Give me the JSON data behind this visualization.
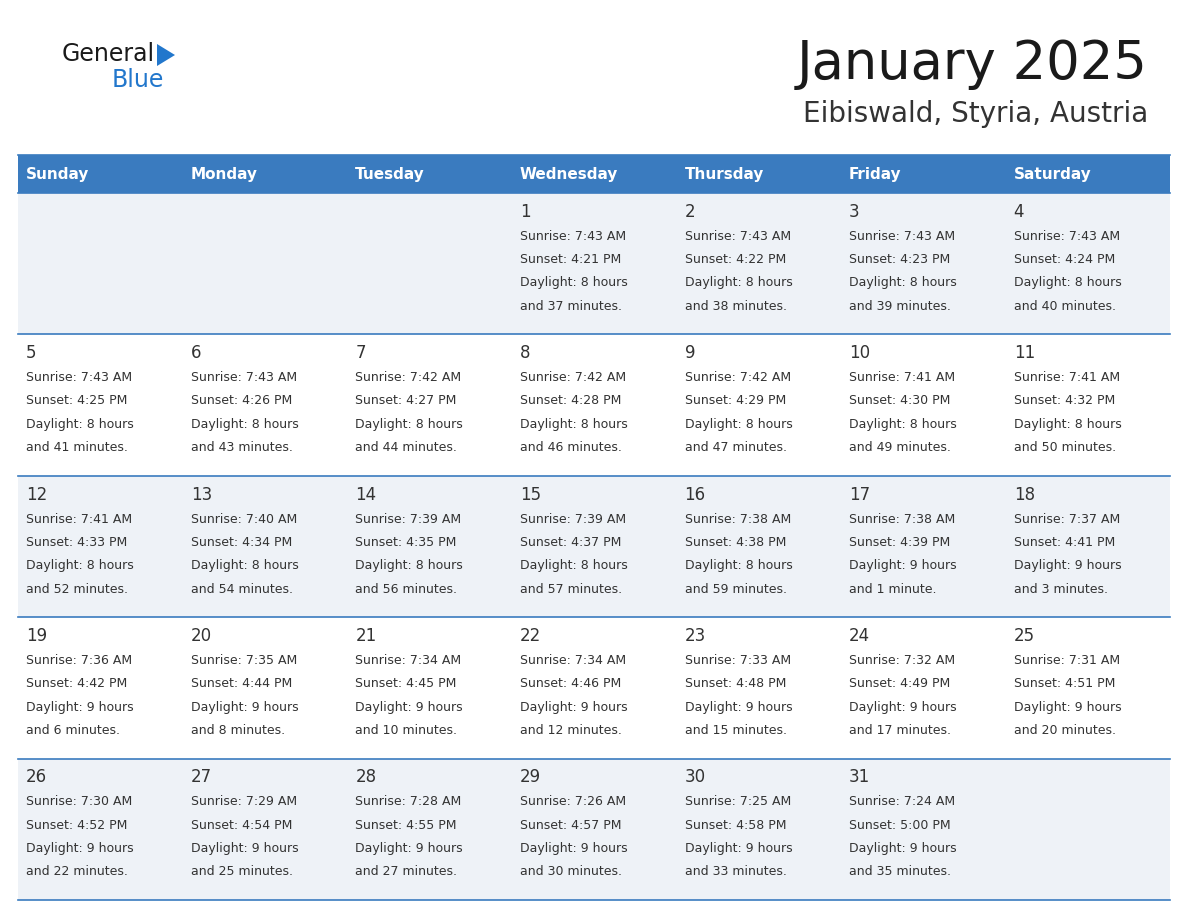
{
  "title": "January 2025",
  "subtitle": "Eibiswald, Styria, Austria",
  "days_of_week": [
    "Sunday",
    "Monday",
    "Tuesday",
    "Wednesday",
    "Thursday",
    "Friday",
    "Saturday"
  ],
  "header_bg": "#3a7bbf",
  "header_text": "#ffffff",
  "row_bg_odd": "#eef2f7",
  "row_bg_even": "#ffffff",
  "border_color": "#3a7bbf",
  "title_color": "#1a1a1a",
  "subtitle_color": "#333333",
  "cell_text_color": "#333333",
  "day_num_color": "#333333",
  "logo_black": "#1a1a1a",
  "logo_blue": "#2277cc",
  "calendar_data": [
    [
      {
        "day": "",
        "sunrise": "",
        "sunset": "",
        "daylight": ""
      },
      {
        "day": "",
        "sunrise": "",
        "sunset": "",
        "daylight": ""
      },
      {
        "day": "",
        "sunrise": "",
        "sunset": "",
        "daylight": ""
      },
      {
        "day": "1",
        "sunrise": "7:43 AM",
        "sunset": "4:21 PM",
        "daylight": "8 hours and 37 minutes."
      },
      {
        "day": "2",
        "sunrise": "7:43 AM",
        "sunset": "4:22 PM",
        "daylight": "8 hours and 38 minutes."
      },
      {
        "day": "3",
        "sunrise": "7:43 AM",
        "sunset": "4:23 PM",
        "daylight": "8 hours and 39 minutes."
      },
      {
        "day": "4",
        "sunrise": "7:43 AM",
        "sunset": "4:24 PM",
        "daylight": "8 hours and 40 minutes."
      }
    ],
    [
      {
        "day": "5",
        "sunrise": "7:43 AM",
        "sunset": "4:25 PM",
        "daylight": "8 hours and 41 minutes."
      },
      {
        "day": "6",
        "sunrise": "7:43 AM",
        "sunset": "4:26 PM",
        "daylight": "8 hours and 43 minutes."
      },
      {
        "day": "7",
        "sunrise": "7:42 AM",
        "sunset": "4:27 PM",
        "daylight": "8 hours and 44 minutes."
      },
      {
        "day": "8",
        "sunrise": "7:42 AM",
        "sunset": "4:28 PM",
        "daylight": "8 hours and 46 minutes."
      },
      {
        "day": "9",
        "sunrise": "7:42 AM",
        "sunset": "4:29 PM",
        "daylight": "8 hours and 47 minutes."
      },
      {
        "day": "10",
        "sunrise": "7:41 AM",
        "sunset": "4:30 PM",
        "daylight": "8 hours and 49 minutes."
      },
      {
        "day": "11",
        "sunrise": "7:41 AM",
        "sunset": "4:32 PM",
        "daylight": "8 hours and 50 minutes."
      }
    ],
    [
      {
        "day": "12",
        "sunrise": "7:41 AM",
        "sunset": "4:33 PM",
        "daylight": "8 hours and 52 minutes."
      },
      {
        "day": "13",
        "sunrise": "7:40 AM",
        "sunset": "4:34 PM",
        "daylight": "8 hours and 54 minutes."
      },
      {
        "day": "14",
        "sunrise": "7:39 AM",
        "sunset": "4:35 PM",
        "daylight": "8 hours and 56 minutes."
      },
      {
        "day": "15",
        "sunrise": "7:39 AM",
        "sunset": "4:37 PM",
        "daylight": "8 hours and 57 minutes."
      },
      {
        "day": "16",
        "sunrise": "7:38 AM",
        "sunset": "4:38 PM",
        "daylight": "8 hours and 59 minutes."
      },
      {
        "day": "17",
        "sunrise": "7:38 AM",
        "sunset": "4:39 PM",
        "daylight": "9 hours and 1 minute."
      },
      {
        "day": "18",
        "sunrise": "7:37 AM",
        "sunset": "4:41 PM",
        "daylight": "9 hours and 3 minutes."
      }
    ],
    [
      {
        "day": "19",
        "sunrise": "7:36 AM",
        "sunset": "4:42 PM",
        "daylight": "9 hours and 6 minutes."
      },
      {
        "day": "20",
        "sunrise": "7:35 AM",
        "sunset": "4:44 PM",
        "daylight": "9 hours and 8 minutes."
      },
      {
        "day": "21",
        "sunrise": "7:34 AM",
        "sunset": "4:45 PM",
        "daylight": "9 hours and 10 minutes."
      },
      {
        "day": "22",
        "sunrise": "7:34 AM",
        "sunset": "4:46 PM",
        "daylight": "9 hours and 12 minutes."
      },
      {
        "day": "23",
        "sunrise": "7:33 AM",
        "sunset": "4:48 PM",
        "daylight": "9 hours and 15 minutes."
      },
      {
        "day": "24",
        "sunrise": "7:32 AM",
        "sunset": "4:49 PM",
        "daylight": "9 hours and 17 minutes."
      },
      {
        "day": "25",
        "sunrise": "7:31 AM",
        "sunset": "4:51 PM",
        "daylight": "9 hours and 20 minutes."
      }
    ],
    [
      {
        "day": "26",
        "sunrise": "7:30 AM",
        "sunset": "4:52 PM",
        "daylight": "9 hours and 22 minutes."
      },
      {
        "day": "27",
        "sunrise": "7:29 AM",
        "sunset": "4:54 PM",
        "daylight": "9 hours and 25 minutes."
      },
      {
        "day": "28",
        "sunrise": "7:28 AM",
        "sunset": "4:55 PM",
        "daylight": "9 hours and 27 minutes."
      },
      {
        "day": "29",
        "sunrise": "7:26 AM",
        "sunset": "4:57 PM",
        "daylight": "9 hours and 30 minutes."
      },
      {
        "day": "30",
        "sunrise": "7:25 AM",
        "sunset": "4:58 PM",
        "daylight": "9 hours and 33 minutes."
      },
      {
        "day": "31",
        "sunrise": "7:24 AM",
        "sunset": "5:00 PM",
        "daylight": "9 hours and 35 minutes."
      },
      {
        "day": "",
        "sunrise": "",
        "sunset": "",
        "daylight": ""
      }
    ]
  ]
}
